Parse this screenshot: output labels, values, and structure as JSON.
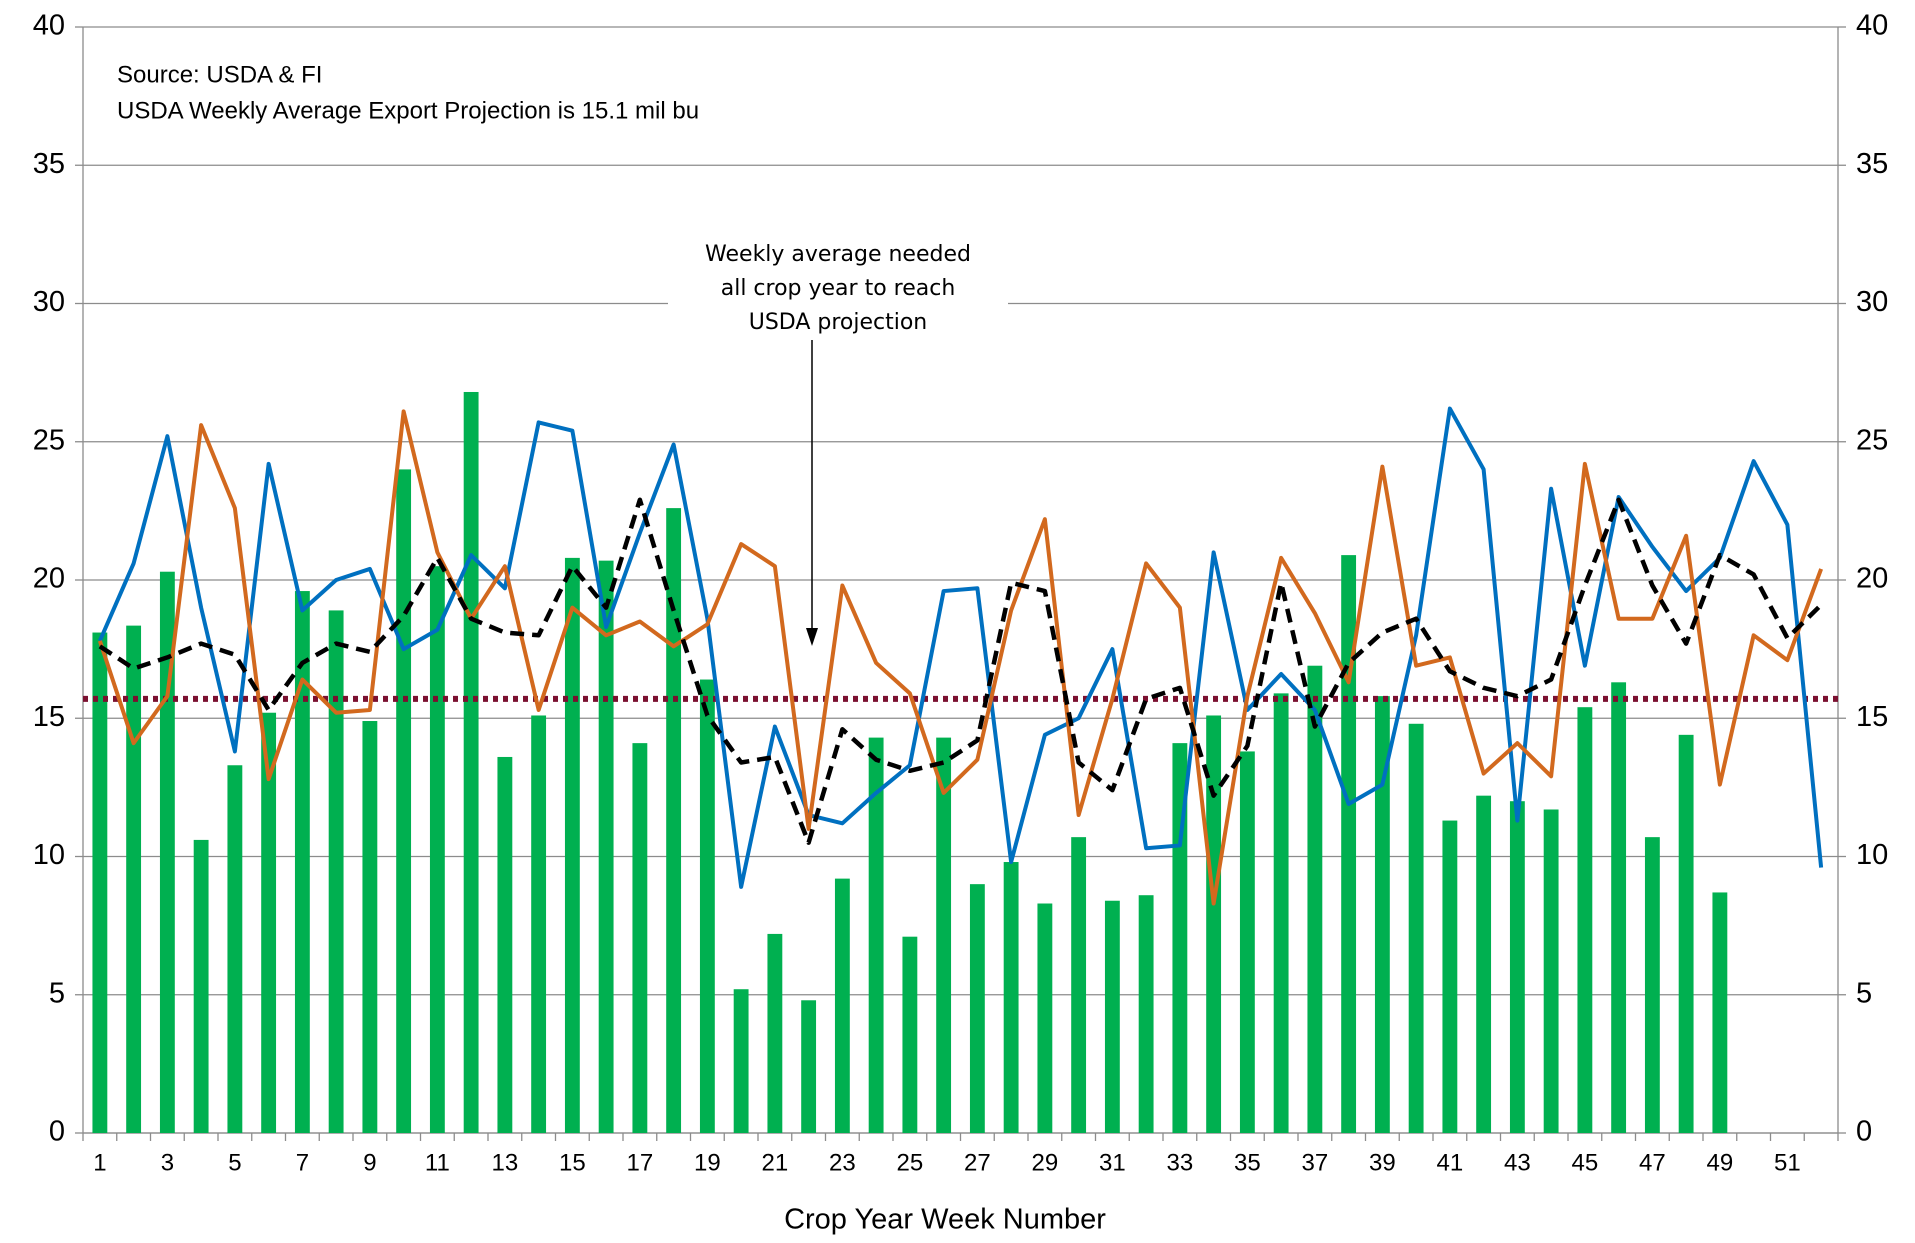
{
  "chart_data": {
    "type": "combo",
    "notes": [
      "Source: USDA & FI",
      "USDA Weekly Average Export Projection is 15.1 mil bu"
    ],
    "callout": [
      "Weekly average needed",
      "all crop year to reach",
      "USDA projection"
    ],
    "x_label": "Crop Year Week Number",
    "categories": [
      1,
      null,
      3,
      null,
      5,
      null,
      7,
      null,
      9,
      null,
      11,
      null,
      13,
      null,
      15,
      null,
      17,
      null,
      19,
      null,
      21,
      null,
      23,
      null,
      25,
      null,
      27,
      null,
      29,
      null,
      31,
      null,
      33,
      null,
      35,
      null,
      37,
      null,
      39,
      null,
      41,
      null,
      43,
      null,
      45,
      null,
      47,
      null,
      49,
      null,
      51,
      null
    ],
    "series": [
      {
        "type": "bar",
        "color": "#00b050",
        "values": [
          18.1,
          18.35,
          20.3,
          10.6,
          13.3,
          15.2,
          19.6,
          18.9,
          14.9,
          24.0,
          20.5,
          26.8,
          13.6,
          15.1,
          20.8,
          20.7,
          14.1,
          22.6,
          16.4,
          5.2,
          7.2,
          4.8,
          9.2,
          14.3,
          7.1,
          14.3,
          9.0,
          9.8,
          8.3,
          10.7,
          8.4,
          8.6,
          14.1,
          15.1,
          13.8,
          15.9,
          16.9,
          20.9,
          15.8,
          14.8,
          11.3,
          12.2,
          12.0,
          11.7,
          15.4,
          16.3,
          10.7,
          14.4,
          8.7,
          null,
          null,
          null
        ]
      },
      {
        "type": "line",
        "color": "#0070c0",
        "style": "solid",
        "values": [
          17.8,
          20.6,
          25.2,
          19.0,
          13.8,
          24.2,
          18.9,
          20.0,
          20.4,
          17.5,
          18.2,
          20.9,
          19.7,
          25.7,
          25.4,
          18.3,
          21.7,
          24.9,
          18.6,
          8.9,
          14.7,
          11.5,
          11.2,
          12.3,
          13.3,
          19.6,
          19.7,
          9.8,
          14.4,
          15.0,
          17.5,
          10.3,
          10.4,
          21.0,
          15.3,
          16.6,
          15.3,
          11.9,
          12.6,
          18.0,
          26.2,
          24.0,
          11.3,
          23.3,
          16.9,
          23.0,
          21.2,
          19.6,
          20.8,
          24.3,
          22.0,
          9.6
        ]
      },
      {
        "type": "line",
        "color": "#d2691e",
        "style": "solid",
        "values": [
          17.8,
          14.1,
          15.8,
          25.6,
          22.6,
          12.8,
          16.4,
          15.2,
          15.3,
          26.1,
          21.0,
          18.6,
          20.5,
          15.3,
          19.0,
          18.0,
          18.5,
          17.6,
          18.4,
          21.3,
          20.5,
          11.0,
          19.8,
          17.0,
          15.9,
          12.3,
          13.5,
          18.9,
          22.2,
          11.5,
          15.7,
          20.6,
          19.0,
          8.3,
          15.8,
          20.8,
          18.8,
          16.3,
          24.1,
          16.9,
          17.2,
          13.0,
          14.1,
          12.9,
          24.2,
          18.6,
          18.6,
          21.6,
          12.6,
          18.0,
          17.1,
          20.4
        ]
      },
      {
        "type": "line",
        "color": "#000000",
        "style": "dashed",
        "values": [
          17.6,
          16.8,
          17.2,
          17.7,
          17.3,
          15.3,
          17.0,
          17.7,
          17.4,
          18.7,
          20.8,
          18.6,
          18.1,
          18.0,
          20.5,
          19.0,
          22.9,
          18.9,
          15.1,
          13.4,
          13.6,
          10.5,
          14.6,
          13.5,
          13.1,
          13.4,
          14.2,
          19.9,
          19.6,
          13.4,
          12.4,
          15.7,
          16.1,
          12.2,
          14.0,
          19.9,
          14.7,
          17.0,
          18.1,
          18.6,
          16.7,
          16.1,
          15.8,
          16.4,
          19.8,
          22.9,
          19.8,
          17.7,
          20.9,
          20.2,
          17.9,
          19.1
        ]
      }
    ],
    "reference_line": {
      "value": 15.7,
      "color": "#7b1030",
      "style": "dotted"
    },
    "ylim": [
      0,
      40
    ],
    "yticks": [
      0,
      5,
      10,
      15,
      20,
      25,
      30,
      35,
      40
    ],
    "y2lim": [
      0,
      40
    ],
    "y2ticks": [
      0,
      5,
      10,
      15,
      20,
      25,
      30,
      35,
      40
    ],
    "grid": true
  }
}
